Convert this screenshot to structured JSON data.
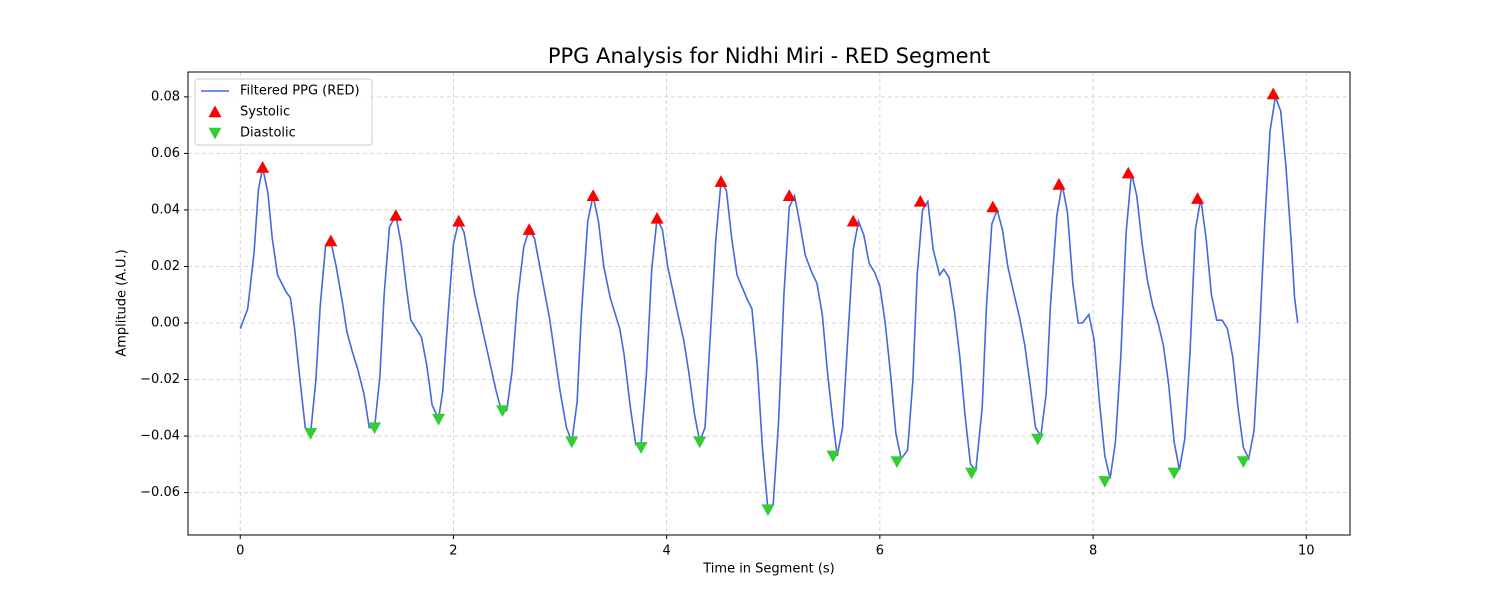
{
  "chart_data": {
    "type": "line",
    "title": "PPG Analysis for Nidhi Miri - RED Segment",
    "xlabel": "Time in Segment (s)",
    "ylabel": "Amplitude (A.U.)",
    "xlim": [
      -0.49,
      10.41
    ],
    "ylim": [
      -0.075,
      0.0888
    ],
    "xticks": [
      0,
      2,
      4,
      6,
      8,
      10
    ],
    "yticks": [
      {
        "value": -0.06,
        "label": "−0.06"
      },
      {
        "value": -0.04,
        "label": "−0.04"
      },
      {
        "value": -0.02,
        "label": "−0.02"
      },
      {
        "value": 0,
        "label": "0.00"
      },
      0.02,
      0.04,
      0.06,
      0.08
    ],
    "grid": true,
    "legend": "upper left",
    "series": [
      {
        "name": "Filtered PPG (RED)",
        "color": "#4169e1",
        "type": "line",
        "x": [
          0,
          0.07,
          0.13,
          0.17,
          0.21,
          0.26,
          0.3,
          0.35,
          0.43,
          0.47,
          0.51,
          0.56,
          0.61,
          0.66,
          0.71,
          0.75,
          0.8,
          0.85,
          0.9,
          0.96,
          1.0,
          1.05,
          1.1,
          1.16,
          1.21,
          1.26,
          1.31,
          1.35,
          1.4,
          1.46,
          1.51,
          1.56,
          1.6,
          1.7,
          1.75,
          1.8,
          1.86,
          1.9,
          1.95,
          2.0,
          2.05,
          2.1,
          2.15,
          2.2,
          2.3,
          2.4,
          2.45,
          2.5,
          2.55,
          2.6,
          2.66,
          2.71,
          2.76,
          2.81,
          2.9,
          3.0,
          3.06,
          3.11,
          3.16,
          3.2,
          3.26,
          3.31,
          3.36,
          3.41,
          3.47,
          3.56,
          3.6,
          3.66,
          3.71,
          3.76,
          3.81,
          3.86,
          3.91,
          3.96,
          4.01,
          4.1,
          4.16,
          4.21,
          4.26,
          4.31,
          4.36,
          4.41,
          4.46,
          4.51,
          4.56,
          4.61,
          4.66,
          4.76,
          4.8,
          4.85,
          4.9,
          4.95,
          5.0,
          5.05,
          5.1,
          5.15,
          5.2,
          5.25,
          5.3,
          5.36,
          5.41,
          5.46,
          5.51,
          5.56,
          5.6,
          5.65,
          5.7,
          5.75,
          5.8,
          5.85,
          5.9,
          5.95,
          6.0,
          6.05,
          6.1,
          6.15,
          6.2,
          6.26,
          6.31,
          6.35,
          6.4,
          6.45,
          6.5,
          6.56,
          6.6,
          6.65,
          6.7,
          6.75,
          6.8,
          6.85,
          6.9,
          6.96,
          7.0,
          7.05,
          7.1,
          7.15,
          7.2,
          7.26,
          7.31,
          7.36,
          7.41,
          7.46,
          7.51,
          7.56,
          7.6,
          7.66,
          7.71,
          7.76,
          7.81,
          7.86,
          7.9,
          7.96,
          8.01,
          8.06,
          8.11,
          8.16,
          8.21,
          8.26,
          8.31,
          8.36,
          8.41,
          8.46,
          8.51,
          8.56,
          8.61,
          8.66,
          8.71,
          8.76,
          8.81,
          8.86,
          8.91,
          8.96,
          9.01,
          9.06,
          9.11,
          9.16,
          9.21,
          9.26,
          9.31,
          9.36,
          9.41,
          9.46,
          9.51,
          9.56,
          9.61,
          9.66,
          9.71,
          9.76,
          9.81,
          9.86,
          9.89,
          9.92
        ],
        "values": [
          -0.002,
          0.005,
          0.025,
          0.047,
          0.055,
          0.046,
          0.03,
          0.017,
          0.011,
          0.009,
          -0.002,
          -0.02,
          -0.037,
          -0.039,
          -0.02,
          0.006,
          0.027,
          0.029,
          0.02,
          0.007,
          -0.003,
          -0.01,
          -0.016,
          -0.025,
          -0.037,
          -0.037,
          -0.019,
          0.01,
          0.034,
          0.038,
          0.028,
          0.012,
          0.001,
          -0.005,
          -0.015,
          -0.029,
          -0.034,
          -0.024,
          0.003,
          0.028,
          0.036,
          0.032,
          0.021,
          0.01,
          -0.007,
          -0.024,
          -0.031,
          -0.031,
          -0.017,
          0.008,
          0.027,
          0.033,
          0.03,
          0.02,
          0.002,
          -0.024,
          -0.037,
          -0.042,
          -0.028,
          0.003,
          0.036,
          0.045,
          0.036,
          0.02,
          0.009,
          -0.002,
          -0.011,
          -0.03,
          -0.043,
          -0.043,
          -0.018,
          0.019,
          0.037,
          0.033,
          0.02,
          0.004,
          -0.006,
          -0.018,
          -0.032,
          -0.042,
          -0.037,
          -0.004,
          0.029,
          0.05,
          0.047,
          0.03,
          0.017,
          0.008,
          0.005,
          -0.015,
          -0.045,
          -0.066,
          -0.064,
          -0.035,
          0.01,
          0.041,
          0.045,
          0.035,
          0.024,
          0.018,
          0.014,
          0.003,
          -0.018,
          -0.035,
          -0.047,
          -0.037,
          -0.005,
          0.026,
          0.036,
          0.031,
          0.021,
          0.018,
          0.013,
          0,
          -0.018,
          -0.039,
          -0.048,
          -0.045,
          -0.02,
          0.017,
          0.04,
          0.043,
          0.026,
          0.017,
          0.019,
          0.016,
          0.004,
          -0.012,
          -0.033,
          -0.05,
          -0.052,
          -0.03,
          0.006,
          0.035,
          0.04,
          0.033,
          0.02,
          0.01,
          0.002,
          -0.008,
          -0.022,
          -0.037,
          -0.04,
          -0.025,
          0.006,
          0.038,
          0.049,
          0.039,
          0.014,
          0,
          0,
          0.003,
          -0.006,
          -0.028,
          -0.047,
          -0.055,
          -0.042,
          -0.012,
          0.032,
          0.053,
          0.045,
          0.028,
          0.015,
          0.006,
          0,
          -0.008,
          -0.022,
          -0.042,
          -0.052,
          -0.041,
          -0.01,
          0.033,
          0.044,
          0.03,
          0.01,
          0.001,
          0.001,
          -0.002,
          -0.012,
          -0.03,
          -0.044,
          -0.048,
          -0.038,
          -0.005,
          0.035,
          0.068,
          0.08,
          0.075,
          0.055,
          0.028,
          0.009,
          0
        ]
      },
      {
        "name": "Systolic",
        "color": "#ff0000",
        "type": "scatter",
        "marker": "triangle-up",
        "x": [
          0.21,
          0.85,
          1.46,
          2.05,
          2.71,
          3.31,
          3.91,
          4.51,
          5.15,
          5.75,
          6.38,
          7.06,
          7.68,
          8.33,
          8.98,
          9.69
        ],
        "values": [
          0.055,
          0.029,
          0.038,
          0.036,
          0.033,
          0.045,
          0.037,
          0.05,
          0.045,
          0.036,
          0.043,
          0.041,
          0.049,
          0.053,
          0.044,
          0.081
        ]
      },
      {
        "name": "Diastolic",
        "color": "#32cd32",
        "type": "scatter",
        "marker": "triangle-down",
        "x": [
          0.66,
          1.26,
          1.86,
          2.46,
          3.11,
          3.76,
          4.31,
          4.95,
          5.56,
          6.16,
          6.86,
          7.48,
          8.11,
          8.76,
          9.41
        ],
        "values": [
          -0.039,
          -0.037,
          -0.034,
          -0.031,
          -0.042,
          -0.044,
          -0.042,
          -0.066,
          -0.047,
          -0.049,
          -0.053,
          -0.041,
          -0.056,
          -0.053,
          -0.049
        ]
      }
    ]
  }
}
